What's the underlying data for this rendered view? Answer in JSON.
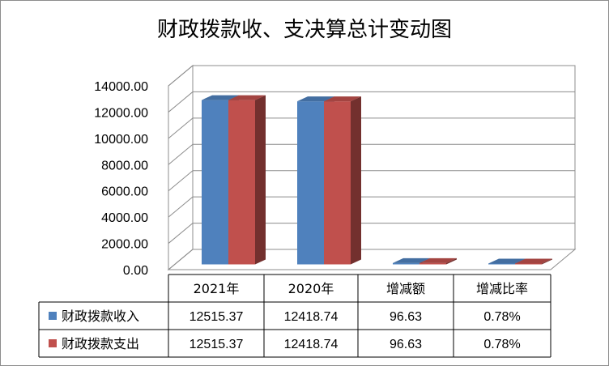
{
  "chart_data": {
    "type": "bar",
    "title": "财政拨款收、支决算总计变动图",
    "categories": [
      "2021年",
      "2020年",
      "增减额",
      "增减比率"
    ],
    "series": [
      {
        "name": "财政拨款收入",
        "color": "#4F81BD",
        "values": [
          12515.37,
          12418.74,
          96.63,
          0.78
        ],
        "labels": [
          "12515.37",
          "12418.74",
          "96.63",
          "0.78%"
        ]
      },
      {
        "name": "财政拨款支出",
        "color": "#C0504D",
        "values": [
          12515.37,
          12418.74,
          96.63,
          0.78
        ],
        "labels": [
          "12515.37",
          "12418.74",
          "96.63",
          "0.78%"
        ]
      }
    ],
    "ylim": [
      0,
      14000
    ],
    "yticks": [
      "0.00",
      "2000.00",
      "4000.00",
      "6000.00",
      "8000.00",
      "10000.00",
      "12000.00",
      "14000.00"
    ],
    "grid": true,
    "legend": "data-table",
    "three_d": true
  }
}
